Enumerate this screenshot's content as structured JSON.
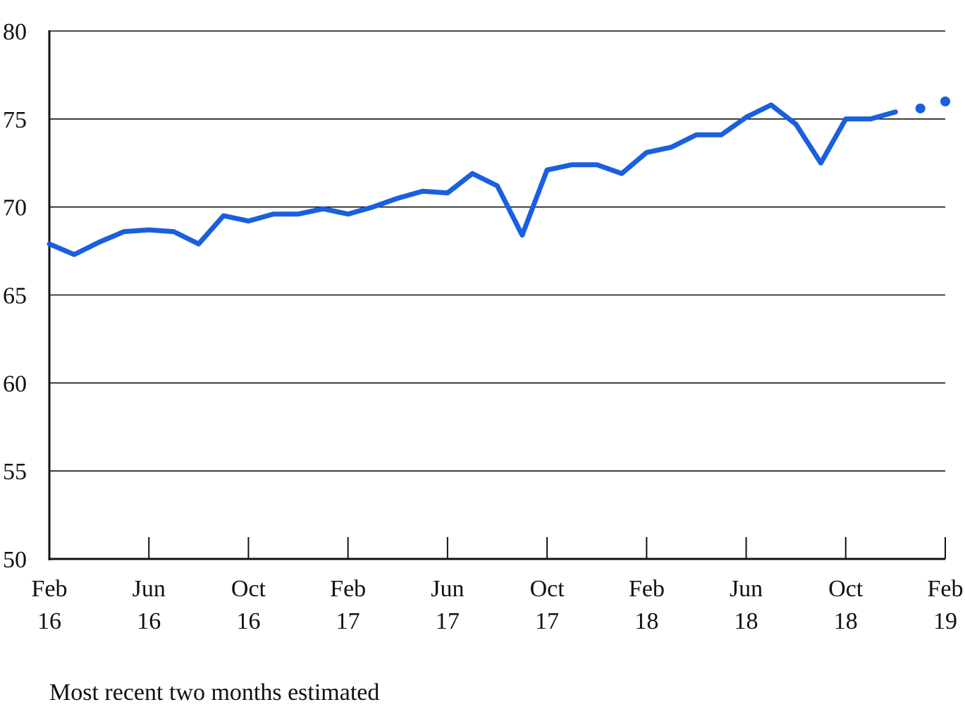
{
  "note": "Most recent two months estimated",
  "chart_data": {
    "type": "line",
    "title": "",
    "xlabel": "",
    "ylabel": "",
    "ylim": [
      50,
      80
    ],
    "yticks": [
      "50",
      "55",
      "60",
      "65",
      "70",
      "75",
      "80"
    ],
    "xticks": [
      {
        "month": "Feb",
        "year": "16"
      },
      {
        "month": "Jun",
        "year": "16"
      },
      {
        "month": "Oct",
        "year": "16"
      },
      {
        "month": "Feb",
        "year": "17"
      },
      {
        "month": "Jun",
        "year": "17"
      },
      {
        "month": "Oct",
        "year": "17"
      },
      {
        "month": "Feb",
        "year": "18"
      },
      {
        "month": "Jun",
        "year": "18"
      },
      {
        "month": "Oct",
        "year": "18"
      },
      {
        "month": "Feb",
        "year": "19"
      }
    ],
    "grid": "horizontal",
    "line_color": "#1a5fe0",
    "x": [
      "Feb 16",
      "Mar 16",
      "Apr 16",
      "May 16",
      "Jun 16",
      "Jul 16",
      "Aug 16",
      "Sep 16",
      "Oct 16",
      "Nov 16",
      "Dec 16",
      "Jan 17",
      "Feb 17",
      "Mar 17",
      "Apr 17",
      "May 17",
      "Jun 17",
      "Jul 17",
      "Aug 17",
      "Sep 17",
      "Oct 17",
      "Nov 17",
      "Dec 17",
      "Jan 18",
      "Feb 18",
      "Mar 18",
      "Apr 18",
      "May 18",
      "Jun 18",
      "Jul 18",
      "Aug 18",
      "Sep 18",
      "Oct 18",
      "Nov 18",
      "Dec 18",
      "Jan 19",
      "Feb 19"
    ],
    "values": [
      67.9,
      67.3,
      68.0,
      68.6,
      68.7,
      68.6,
      67.9,
      69.5,
      69.2,
      69.6,
      69.6,
      69.9,
      69.6,
      70.0,
      70.5,
      70.9,
      70.8,
      71.9,
      71.2,
      68.4,
      72.1,
      72.4,
      72.4,
      71.9,
      73.1,
      73.4,
      74.1,
      74.1,
      75.1,
      75.8,
      74.7,
      72.5,
      75.0,
      75.0,
      75.4,
      75.6,
      76.0
    ],
    "estimated_months": [
      "Jan 19",
      "Feb 19"
    ]
  }
}
